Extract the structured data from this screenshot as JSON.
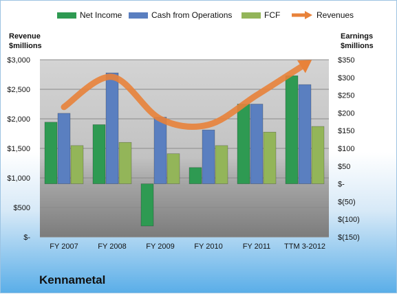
{
  "chart_data": {
    "type": "bar",
    "categories": [
      "FY 2007",
      "FY 2008",
      "FY 2009",
      "FY 2010",
      "FY 2011",
      "TTM 3-2012"
    ],
    "series": [
      {
        "name": "Net Income",
        "axis": "right",
        "color": "#2e9a52",
        "values": [
          174,
          167,
          -119,
          46,
          225,
          305
        ]
      },
      {
        "name": "Cash from Operations",
        "axis": "right",
        "color": "#5a7fc0",
        "values": [
          199,
          313,
          188,
          152,
          225,
          280
        ]
      },
      {
        "name": "FCF",
        "axis": "right",
        "color": "#93b559",
        "values": [
          108,
          117,
          85,
          108,
          146,
          162
        ]
      },
      {
        "name": "Revenues",
        "axis": "left",
        "type": "line",
        "color": "#e8823a",
        "values": [
          2200,
          2710,
          2000,
          1900,
          2400,
          2920
        ]
      }
    ],
    "left_axis": {
      "label_line1": "Revenue",
      "label_line2": "$millions",
      "min": 0,
      "max": 3000,
      "ticks": [
        0,
        500,
        1000,
        1500,
        2000,
        2500,
        3000
      ],
      "tick_labels": [
        "$-",
        "$500",
        "$1,000",
        "$1,500",
        "$2,000",
        "$2,500",
        "$3,000"
      ]
    },
    "right_axis": {
      "label_line1": "Earnings",
      "label_line2": "$millions",
      "min": -150,
      "max": 350,
      "ticks": [
        -150,
        -100,
        -50,
        0,
        50,
        100,
        150,
        200,
        250,
        300,
        350
      ],
      "tick_labels": [
        "$(150)",
        "$(100)",
        "$(50)",
        "$-",
        "$50",
        "$100",
        "$150",
        "$200",
        "$250",
        "$300",
        "$350"
      ]
    },
    "legend_position": "top",
    "grid": true
  },
  "company": "Kennametal"
}
